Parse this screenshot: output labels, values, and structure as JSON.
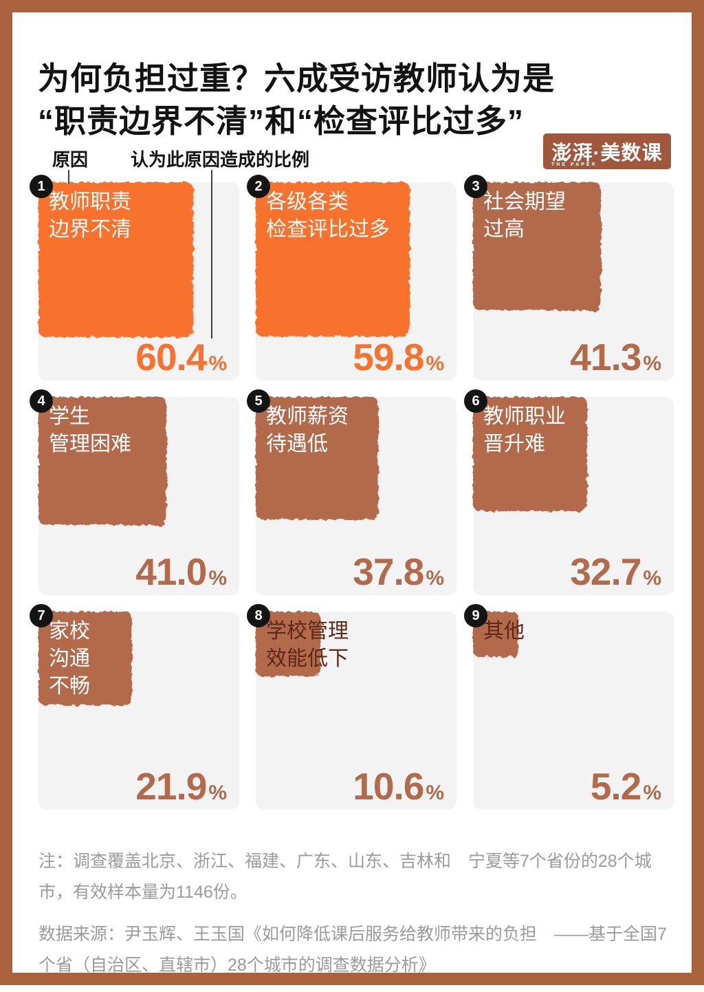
{
  "header": {
    "title_line1": "为何负担过重？六成受访教师认为是",
    "title_line2": "“职责边界不清”和“检查评比过多”"
  },
  "logo": {
    "text": "澎湃·美数课",
    "subtext": "THE PAPER"
  },
  "palette": {
    "orange": "#F8722F",
    "brown": "#B26A4B",
    "dark_text": "#5E2718",
    "cell_bg": "#F3F3F3",
    "frame": "#A9613E",
    "note_gray": "#9B9B9B"
  },
  "chart_data": {
    "type": "area-proportional-squares",
    "title": "为何负担过重？六成受访教师认为是“职责边界不清”和“检查评比过多”",
    "legend": {
      "cause": "原因",
      "proportion": "认为此原因造成的比例"
    },
    "unit": "%",
    "percent_sign": "%",
    "value_range": [
      0,
      100
    ],
    "items": [
      {
        "rank": "1",
        "label": "教师职责\n边界不清",
        "value": 60.4,
        "value_text": "60.4",
        "color": "orange",
        "label_style": "light"
      },
      {
        "rank": "2",
        "label": "各级各类\n检查评比过多",
        "value": 59.8,
        "value_text": "59.8",
        "color": "orange",
        "label_style": "light"
      },
      {
        "rank": "3",
        "label": "社会期望\n过高",
        "value": 41.3,
        "value_text": "41.3",
        "color": "brown",
        "label_style": "light"
      },
      {
        "rank": "4",
        "label": "学生\n管理困难",
        "value": 41.0,
        "value_text": "41.0",
        "color": "brown",
        "label_style": "light"
      },
      {
        "rank": "5",
        "label": "教师薪资\n待遇低",
        "value": 37.8,
        "value_text": "37.8",
        "color": "brown",
        "label_style": "light"
      },
      {
        "rank": "6",
        "label": "教师职业\n晋升难",
        "value": 32.7,
        "value_text": "32.7",
        "color": "brown",
        "label_style": "light"
      },
      {
        "rank": "7",
        "label": "家校\n沟通\n不畅",
        "value": 21.9,
        "value_text": "21.9",
        "color": "brown",
        "label_style": "light"
      },
      {
        "rank": "8",
        "label": "学校管理\n效能低下",
        "value": 10.6,
        "value_text": "10.6",
        "color": "brown",
        "label_style": "dark"
      },
      {
        "rank": "9",
        "label": "其他",
        "value": 5.2,
        "value_text": "5.2",
        "color": "brown",
        "label_style": "dark"
      }
    ]
  },
  "notes": {
    "note1": "注：调查覆盖北京、浙江、福建、广东、山东、吉林和　宁夏等7个省份的28个城市，有效样本量为1146份。",
    "note2": "数据来源：尹玉辉、王玉国《如何降低课后服务给教师带来的负担　——基于全国7个省（自治区、直辖市）28个城市的调查数据分析》"
  }
}
